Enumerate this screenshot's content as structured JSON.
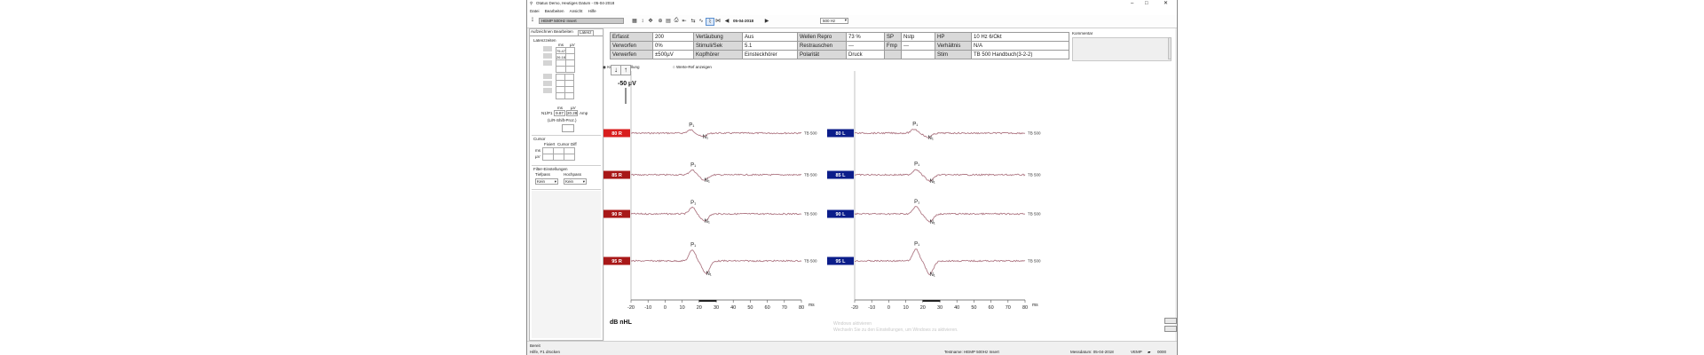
{
  "window": {
    "title": "Otatus Demo, Heutiges Datum - 05-04-2018",
    "controls": [
      "–",
      "□",
      "✕"
    ]
  },
  "menu": [
    "Datei",
    "Bearbeiten",
    "Ansicht",
    "Hilfe"
  ],
  "toolbar": {
    "protocol": "HEMP 500Hz Insert",
    "date": "05-04-2018",
    "frequency": "500 Hz"
  },
  "left_panel": {
    "tabs": [
      "Aufzeichnen",
      "Bearbeiten",
      "Latenz"
    ],
    "latency_title": "Latenzzeiten",
    "latency_headers": [
      "ms",
      "µV"
    ],
    "latency_vals": [
      "75.47",
      "26.18"
    ],
    "ratio_label": "N1/P1",
    "ratio_ms": "9.87",
    "ratio_uv": "20.28",
    "ratio_unit": "Amp",
    "label_lr": "(L/R-Shift-Proz.)",
    "cursor_title": "Cursor",
    "cursor_headers": [
      "Fixiert",
      "Cursor",
      "Diff"
    ],
    "cursor_rows": [
      "ms",
      "µV"
    ],
    "filter_title": "Filter-Einstellungen",
    "filter_labels": [
      "Tiefpass",
      "Hochpass"
    ],
    "filter_values": [
      "Kein",
      "Kein"
    ]
  },
  "params": [
    [
      "Erfasst",
      "200",
      "Vertäubung",
      "Aus",
      "Wellen Repro",
      "73 %",
      "SP",
      "Nstp",
      "HP",
      "10 Hz 6/Okt"
    ],
    [
      "Verworfen",
      "0%",
      "Stimuli/Sek",
      "5.1",
      "Restrauschen",
      "---",
      "Fmp",
      "---",
      "Verhältnis",
      "N/A"
    ],
    [
      "Verwerfen",
      "±500µV",
      "Kopfhörer",
      "Einsteckhörer",
      "Polarität",
      "Druck",
      "",
      "",
      "Stim",
      "TB 500 Handbuch(3-2-2)"
    ]
  ],
  "comment_label": "Kommentar",
  "options": [
    "Kurvendarstellung",
    "Werte-Ref anzeigen"
  ],
  "scale_label": "-50 µV",
  "x_label": "dB nHL",
  "x_unit": "ms",
  "curve_label": "TB 500",
  "watermark_lines": [
    "Windows aktivieren",
    "Wechseln Sie zu den Einstellungen, um Windows zu aktivieren."
  ],
  "status": {
    "left1": "Bereit",
    "left2": "Hilfe, F1 drücken",
    "right": [
      "Testname: HEMP 500Hz Insert",
      "Messdatum: 05-04-2018",
      "VEMP",
      "0000"
    ]
  },
  "colors": {
    "right_ear": "#d81e1e",
    "right_ear_dark": "#a81818",
    "left_ear": "#0b1d8a",
    "waveform": "#b07a86"
  },
  "chart_data": {
    "type": "line",
    "x_ticks": [
      -20,
      -10,
      0,
      10,
      20,
      30,
      40,
      50,
      60,
      70,
      80
    ],
    "xlim": [
      -20,
      80
    ],
    "x_unit": "ms",
    "panels": [
      {
        "side": "right",
        "traces": [
          {
            "level": "80 R",
            "p1_ms": 15,
            "n1_ms": 22,
            "amplitude": 0.4,
            "selected": true
          },
          {
            "level": "85 R",
            "p1_ms": 16,
            "n1_ms": 23,
            "amplitude": 0.6,
            "selected": false
          },
          {
            "level": "90 R",
            "p1_ms": 16,
            "n1_ms": 23,
            "amplitude": 0.8,
            "selected": false
          },
          {
            "level": "95 R",
            "p1_ms": 16,
            "n1_ms": 24,
            "amplitude": 1.4,
            "selected": false
          }
        ]
      },
      {
        "side": "left",
        "traces": [
          {
            "level": "80 L",
            "p1_ms": 15,
            "n1_ms": 23,
            "amplitude": 0.5,
            "selected": false
          },
          {
            "level": "85 L",
            "p1_ms": 16,
            "n1_ms": 24,
            "amplitude": 0.7,
            "selected": false
          },
          {
            "level": "90 L",
            "p1_ms": 16,
            "n1_ms": 24,
            "amplitude": 0.9,
            "selected": false
          },
          {
            "level": "95 L",
            "p1_ms": 16,
            "n1_ms": 24,
            "amplitude": 1.5,
            "selected": false
          }
        ]
      }
    ]
  }
}
